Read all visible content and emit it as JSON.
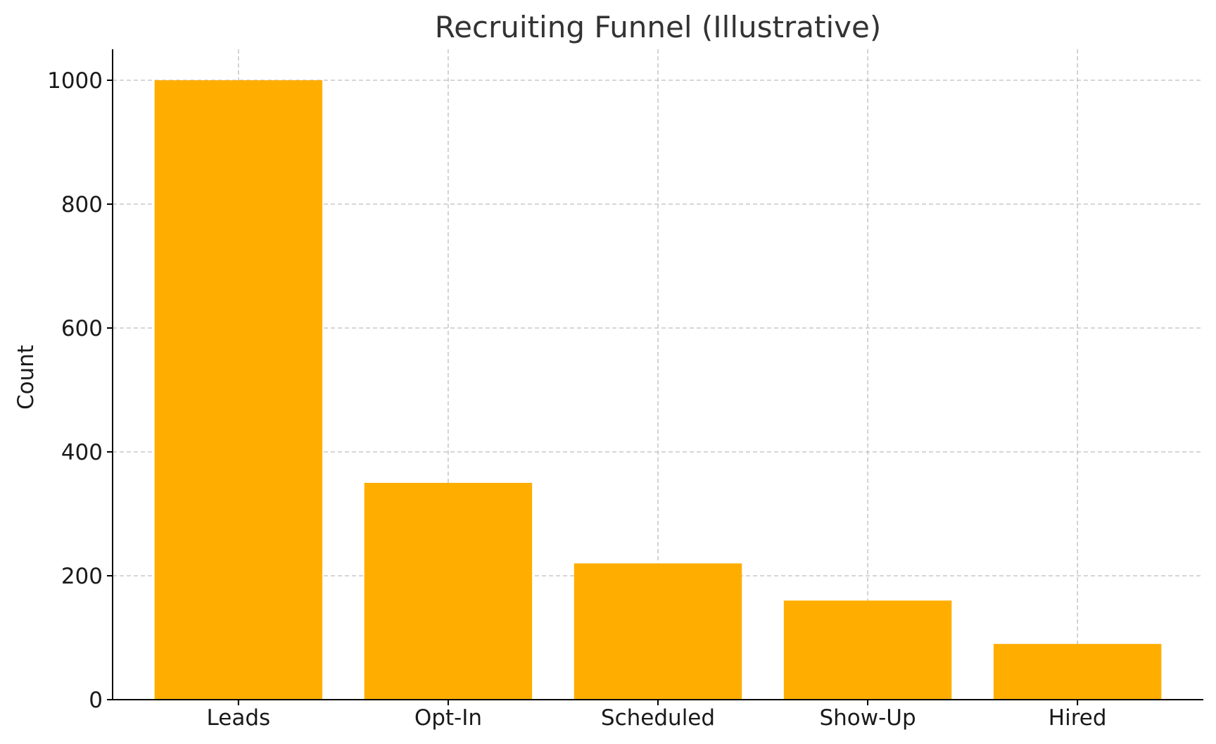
{
  "chart_data": {
    "type": "bar",
    "title": "Recruiting Funnel (Illustrative)",
    "xlabel": "",
    "ylabel": "Count",
    "categories": [
      "Leads",
      "Opt-In",
      "Scheduled",
      "Show-Up",
      "Hired"
    ],
    "values": [
      1000,
      350,
      220,
      160,
      90
    ],
    "ylim": [
      0,
      1050
    ],
    "yticks": [
      0,
      200,
      400,
      600,
      800,
      1000
    ],
    "grid": true,
    "bar_color": "#FFAE00"
  }
}
